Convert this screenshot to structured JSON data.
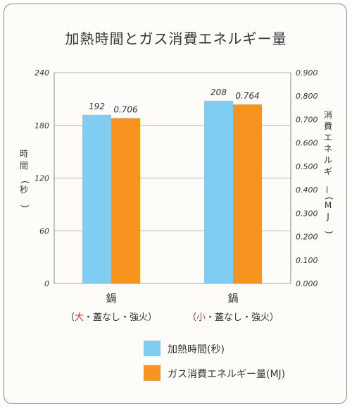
{
  "chart_data": {
    "type": "bar",
    "title": "加熱時間とガス消費エネルギー量",
    "categories": [
      {
        "line1": "鍋",
        "open": "（",
        "highlight": "大",
        "rest": "・蓋なし・強火",
        "close": "）"
      },
      {
        "line1": "鍋",
        "open": "（",
        "highlight": "小",
        "rest": "・蓋なし・強火",
        "close": "）"
      }
    ],
    "series": [
      {
        "name": "加熱時間(秒)",
        "values": [
          192,
          208
        ],
        "labels": [
          "192",
          "208"
        ],
        "color": "#7fcdf3",
        "axis": "left"
      },
      {
        "name": "ガス消費エネルギー量(MJ)",
        "values": [
          0.706,
          0.764
        ],
        "labels": [
          "0.706",
          "0.764"
        ],
        "color": "#f7931e",
        "axis": "right"
      }
    ],
    "ylabel_left": "時間(秒)",
    "ylabel_right": "消費エネルギー(MJ)",
    "ylim_left": [
      0,
      240
    ],
    "ylim_right": [
      0,
      0.9
    ],
    "yticks_left": [
      "0",
      "60",
      "120",
      "180",
      "240"
    ],
    "yticks_right": [
      "0.000",
      "0.100",
      "0.200",
      "0.300",
      "0.400",
      "0.500",
      "0.600",
      "0.700",
      "0.800",
      "0.900"
    ],
    "grid": true,
    "legend_position": "bottom",
    "highlight_color": "#e8322b"
  }
}
